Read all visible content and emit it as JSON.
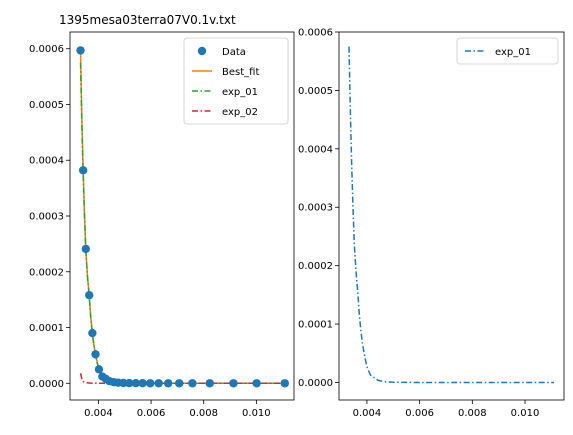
{
  "chart_data": [
    {
      "type": "scatter",
      "title": "1395mesa03terra07V0.1v.txt",
      "xlabel": "",
      "ylabel": "",
      "xlim": [
        0.00292,
        0.01143
      ],
      "ylim": [
        -3e-05,
        0.00063
      ],
      "xticks": [
        0.004,
        0.006,
        0.008,
        0.01
      ],
      "xtick_labels": [
        "0.004",
        "0.006",
        "0.008",
        "0.010"
      ],
      "yticks": [
        0,
        0.0001,
        0.0002,
        0.0003,
        0.0004,
        0.0005,
        0.0006
      ],
      "ytick_labels": [
        "0.0000",
        "0.0001",
        "0.0002",
        "0.0003",
        "0.0004",
        "0.0005",
        "0.0006"
      ],
      "legend_position": "top-right",
      "grid": false,
      "series": [
        {
          "name": "Data",
          "kind": "markers",
          "color": "#1f77b4",
          "x": [
            0.00332,
            0.00342,
            0.00352,
            0.00365,
            0.00377,
            0.00389,
            0.00402,
            0.00415,
            0.00428,
            0.00441,
            0.00458,
            0.00475,
            0.00495,
            0.00517,
            0.00542,
            0.00568,
            0.00597,
            0.00629,
            0.00665,
            0.00707,
            0.00757,
            0.00823,
            0.00913,
            0.01001,
            0.01108
          ],
          "y": [
            0.000597,
            0.000382,
            0.000241,
            0.000158,
            9e-05,
            5.2e-05,
            2.5e-05,
            1.2e-05,
            8e-06,
            4e-06,
            2e-06,
            1e-06,
            5e-07,
            3e-07,
            2e-07,
            1e-07,
            0,
            0,
            0,
            0,
            0,
            0,
            0,
            0,
            0
          ]
        },
        {
          "name": "Best_fit",
          "kind": "line",
          "color": "#ff7f0e",
          "dash": "solid",
          "x": [
            0.00332,
            0.00337,
            0.00342,
            0.00347,
            0.00352,
            0.00358,
            0.00365,
            0.00371,
            0.00377,
            0.00383,
            0.00389,
            0.00396,
            0.00402,
            0.00409,
            0.00415,
            0.00428,
            0.00441,
            0.00458,
            0.00475,
            0.00495,
            0.00517,
            0.00542,
            0.00568,
            0.00597,
            0.0065,
            0.0075,
            0.0085,
            0.0095,
            0.0105,
            0.0111
          ],
          "y": [
            0.000597,
            0.000478,
            0.000382,
            0.000305,
            0.000241,
            0.000195,
            0.000158,
            0.000118,
            9e-05,
            6.8e-05,
            5.2e-05,
            3.6e-05,
            2.5e-05,
            1.7e-05,
            1.2e-05,
            8e-06,
            4e-06,
            2e-06,
            1e-06,
            5e-07,
            3e-07,
            2e-07,
            1e-07,
            0,
            0,
            0,
            0,
            0,
            0,
            0
          ]
        },
        {
          "name": "exp_01",
          "kind": "line",
          "color": "#2ca02c",
          "dash": "dashdot",
          "x": [
            0.00332,
            0.00337,
            0.00342,
            0.00347,
            0.00352,
            0.00358,
            0.00365,
            0.00371,
            0.00377,
            0.00383,
            0.00389,
            0.00396,
            0.00402,
            0.00409,
            0.00415,
            0.00428,
            0.00441,
            0.00458,
            0.00475,
            0.00495,
            0.00517,
            0.00542,
            0.00568,
            0.00597,
            0.0065,
            0.0075,
            0.0085,
            0.0095,
            0.0105,
            0.0111
          ],
          "y": [
            0.000575,
            0.000465,
            0.000375,
            0.0003,
            0.000238,
            0.000193,
            0.000156,
            0.000117,
            8.9e-05,
            6.7e-05,
            5.1e-05,
            3.5e-05,
            2.5e-05,
            1.7e-05,
            1.2e-05,
            8e-06,
            4e-06,
            2e-06,
            1e-06,
            5e-07,
            3e-07,
            2e-07,
            1e-07,
            0,
            0,
            0,
            0,
            0,
            0,
            0
          ]
        },
        {
          "name": "exp_02",
          "kind": "line",
          "color": "#d62728",
          "dash": "dashdot",
          "x": [
            0.00332,
            0.00337,
            0.00342,
            0.00352,
            0.00365,
            0.0038,
            0.004,
            0.0045,
            0.005,
            0.006,
            0.007,
            0.008,
            0.009,
            0.01,
            0.0111
          ],
          "y": [
            1.8e-05,
            8e-06,
            3e-06,
            1e-06,
            4e-07,
            1e-07,
            0,
            0,
            0,
            0,
            0,
            0,
            0,
            0,
            0
          ]
        }
      ]
    },
    {
      "type": "line",
      "title": "",
      "xlabel": "",
      "ylabel": "",
      "xlim": [
        0.00294,
        0.01148
      ],
      "ylim": [
        -3e-05,
        0.0006
      ],
      "xticks": [
        0.004,
        0.006,
        0.008,
        0.01
      ],
      "xtick_labels": [
        "0.004",
        "0.006",
        "0.008",
        "0.010"
      ],
      "yticks": [
        0,
        0.0001,
        0.0002,
        0.0003,
        0.0004,
        0.0005,
        0.0006
      ],
      "ytick_labels": [
        "0.0000",
        "0.0001",
        "0.0002",
        "0.0003",
        "0.0004",
        "0.0005",
        "0.0006"
      ],
      "legend_position": "top-right",
      "grid": false,
      "series": [
        {
          "name": "exp_01",
          "kind": "line",
          "color": "#1f77b4",
          "dash": "dashdot",
          "x": [
            0.00332,
            0.00337,
            0.00342,
            0.00347,
            0.00352,
            0.00358,
            0.00365,
            0.00371,
            0.00377,
            0.00383,
            0.00389,
            0.00396,
            0.00402,
            0.00409,
            0.00415,
            0.00428,
            0.00441,
            0.00458,
            0.00475,
            0.00495,
            0.00517,
            0.00542,
            0.00568,
            0.00597,
            0.0065,
            0.0075,
            0.0085,
            0.0095,
            0.0105,
            0.0111
          ],
          "y": [
            0.000575,
            0.000465,
            0.000375,
            0.0003,
            0.000238,
            0.000193,
            0.000156,
            0.000117,
            8.9e-05,
            6.7e-05,
            5.1e-05,
            3.5e-05,
            2.5e-05,
            1.7e-05,
            1.2e-05,
            8e-06,
            4e-06,
            2e-06,
            1e-06,
            5e-07,
            3e-07,
            2e-07,
            1e-07,
            0,
            0,
            0,
            0,
            0,
            0,
            0
          ]
        }
      ]
    }
  ]
}
